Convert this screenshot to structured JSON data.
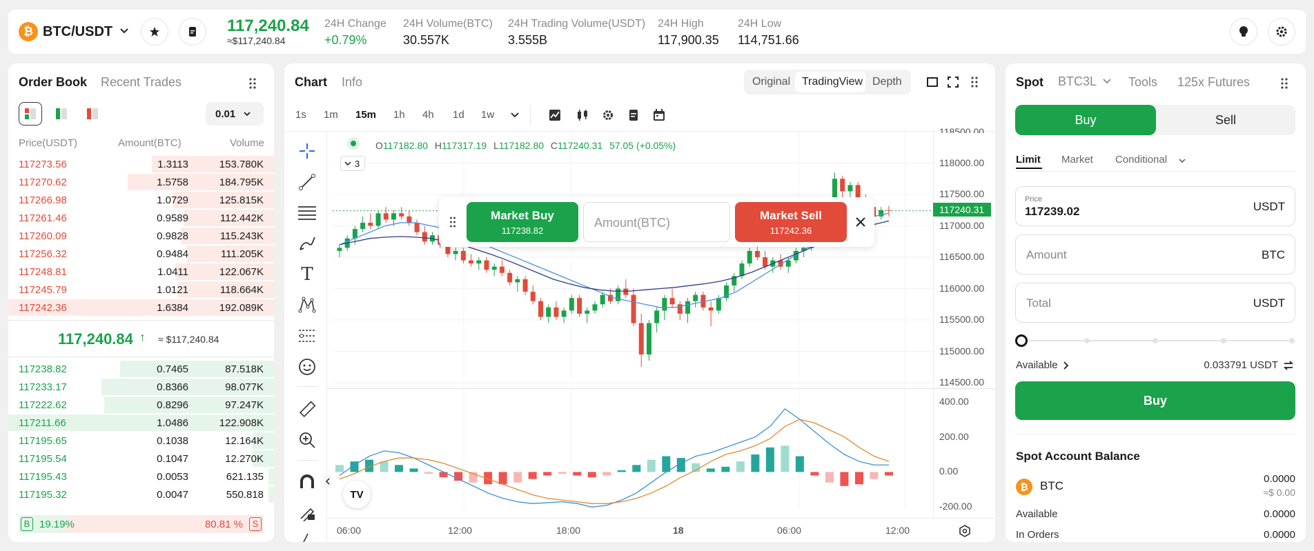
{
  "header": {
    "pair": "BTC/USDT",
    "price": "117,240.84",
    "price_usd": "≈$117,240.84",
    "stats": [
      {
        "label": "24H Change",
        "value": "+0.79%"
      },
      {
        "label": "24H Volume(BTC)",
        "value": "30.557K"
      },
      {
        "label": "24H Trading Volume(USDT)",
        "value": "3.555B"
      },
      {
        "label": "24H High",
        "value": "117,900.35"
      },
      {
        "label": "24H Low",
        "value": "114,751.66"
      }
    ],
    "coin_glyph": "₿"
  },
  "orderbook": {
    "tabs": [
      "Order Book",
      "Recent Trades"
    ],
    "precision": "0.01",
    "columns": [
      "Price(USDT)",
      "Amount(BTC)",
      "Volume"
    ],
    "asks": [
      {
        "price": "117273.56",
        "amount": "1.3113",
        "volume": "153.780K",
        "depth": 0.46
      },
      {
        "price": "117270.62",
        "amount": "1.5758",
        "volume": "184.795K",
        "depth": 0.55
      },
      {
        "price": "117266.98",
        "amount": "1.0729",
        "volume": "125.815K",
        "depth": 0.38
      },
      {
        "price": "117261.46",
        "amount": "0.9589",
        "volume": "112.442K",
        "depth": 0.34
      },
      {
        "price": "117260.09",
        "amount": "0.9828",
        "volume": "115.243K",
        "depth": 0.35
      },
      {
        "price": "117256.32",
        "amount": "0.9484",
        "volume": "111.205K",
        "depth": 0.33
      },
      {
        "price": "117248.81",
        "amount": "1.0411",
        "volume": "122.067K",
        "depth": 0.37
      },
      {
        "price": "117245.79",
        "amount": "1.0121",
        "volume": "118.664K",
        "depth": 0.36
      },
      {
        "price": "117242.36",
        "amount": "1.6384",
        "volume": "192.089K",
        "depth": 1.0
      }
    ],
    "mid_price": "117,240.84",
    "mid_arrow": "↑",
    "mid_usd": "≈ $117,240.84",
    "bids": [
      {
        "price": "117238.82",
        "amount": "0.7465",
        "volume": "87.518K",
        "depth": 0.58
      },
      {
        "price": "117233.17",
        "amount": "0.8366",
        "volume": "98.077K",
        "depth": 0.65
      },
      {
        "price": "117222.62",
        "amount": "0.8296",
        "volume": "97.247K",
        "depth": 0.64
      },
      {
        "price": "117211.66",
        "amount": "1.0486",
        "volume": "122.908K",
        "depth": 1.0
      },
      {
        "price": "117195.65",
        "amount": "0.1038",
        "volume": "12.164K",
        "depth": 0.08
      },
      {
        "price": "117195.54",
        "amount": "0.1047",
        "volume": "12.270K",
        "depth": 0.08
      },
      {
        "price": "117195.43",
        "amount": "0.0053",
        "volume": "621.135",
        "depth": 0.02
      },
      {
        "price": "117195.32",
        "amount": "0.0047",
        "volume": "550.818",
        "depth": 0.02
      }
    ],
    "buy_ratio": {
      "tag": "B",
      "value": "19.19%",
      "fraction": 0.1919
    },
    "sell_ratio": {
      "tag": "S",
      "value": "80.81 %",
      "fraction": 0.8081
    }
  },
  "chart": {
    "tabs": [
      "Chart",
      "Info"
    ],
    "modes": [
      "Original",
      "TradingView",
      "Depth"
    ],
    "active_mode": "TradingView",
    "timeframes": [
      "1s",
      "1m",
      "15m",
      "1h",
      "4h",
      "1d",
      "1w"
    ],
    "active_timeframe": "15m",
    "ohlc": {
      "o_label": "O",
      "o": "117182.80",
      "h_label": "H",
      "h": "117317.19",
      "l_label": "L",
      "l": "117182.80",
      "c_label": "C",
      "c": "117240.31",
      "chg": "57.05 (+0.05%)"
    },
    "indicator_count": "3",
    "price_axis": [
      "118500.00",
      "118000.00",
      "117500.00",
      "117000.00",
      "116500.00",
      "116000.00",
      "115500.00",
      "115000.00",
      "114500.00"
    ],
    "current_price_tag": "117240.31",
    "macd_axis": [
      "400.00",
      "200.00",
      "0.00",
      "-200.00"
    ],
    "time_axis": [
      "06:00",
      "12:00",
      "18:00",
      "18",
      "06:00",
      "12:00"
    ],
    "tv_logo": "TV",
    "quick_trade": {
      "buy_label": "Market Buy",
      "buy_price": "117238.82",
      "amount_placeholder": "Amount(BTC)",
      "sell_label": "Market Sell",
      "sell_price": "117242.36"
    }
  },
  "chart_data": {
    "type": "candlestick",
    "ylim": [
      114500,
      118500
    ],
    "macd_ylim": [
      -250,
      450
    ],
    "x_ticks": [
      "06:00",
      "12:00",
      "18:00",
      "18",
      "06:00",
      "12:00"
    ],
    "candles": [
      [
        116600,
        116700,
        116500,
        116650
      ],
      [
        116650,
        116850,
        116600,
        116800
      ],
      [
        116800,
        117000,
        116700,
        116950
      ],
      [
        116950,
        117150,
        116900,
        117050
      ],
      [
        117050,
        117200,
        116950,
        117000
      ],
      [
        117000,
        117250,
        116950,
        117200
      ],
      [
        117200,
        117300,
        117050,
        117100
      ],
      [
        117100,
        117250,
        117000,
        117200
      ],
      [
        117200,
        117300,
        117100,
        117150
      ],
      [
        117150,
        117250,
        117000,
        117050
      ],
      [
        117050,
        117100,
        116850,
        116900
      ],
      [
        116900,
        117000,
        116700,
        116750
      ],
      [
        116750,
        116900,
        116700,
        116850
      ],
      [
        116850,
        116900,
        116650,
        116700
      ],
      [
        116700,
        116750,
        116500,
        116550
      ],
      [
        116550,
        116650,
        116450,
        116600
      ],
      [
        116600,
        116650,
        116400,
        116450
      ],
      [
        116450,
        116550,
        116350,
        116400
      ],
      [
        116400,
        116500,
        116300,
        116450
      ],
      [
        116450,
        116500,
        116250,
        116300
      ],
      [
        116300,
        116400,
        116200,
        116350
      ],
      [
        116350,
        116450,
        116200,
        116250
      ],
      [
        116250,
        116300,
        116050,
        116100
      ],
      [
        116100,
        116200,
        115950,
        116150
      ],
      [
        116150,
        116200,
        115900,
        115950
      ],
      [
        115950,
        116050,
        115750,
        115800
      ],
      [
        115800,
        115850,
        115500,
        115550
      ],
      [
        115550,
        115750,
        115450,
        115700
      ],
      [
        115700,
        115800,
        115500,
        115550
      ],
      [
        115550,
        115700,
        115450,
        115650
      ],
      [
        115650,
        115900,
        115600,
        115850
      ],
      [
        115850,
        115900,
        115550,
        115600
      ],
      [
        115600,
        115700,
        115450,
        115650
      ],
      [
        115650,
        115800,
        115600,
        115750
      ],
      [
        115750,
        115950,
        115700,
        115900
      ],
      [
        115900,
        116000,
        115750,
        115800
      ],
      [
        115800,
        116050,
        115750,
        116000
      ],
      [
        116000,
        116150,
        115850,
        115900
      ],
      [
        115900,
        116000,
        115400,
        115450
      ],
      [
        115450,
        115600,
        114750,
        114950
      ],
      [
        114950,
        115500,
        114850,
        115450
      ],
      [
        115450,
        115700,
        115300,
        115650
      ],
      [
        115650,
        115900,
        115500,
        115850
      ],
      [
        115850,
        116000,
        115700,
        115750
      ],
      [
        115750,
        115800,
        115500,
        115600
      ],
      [
        115600,
        115850,
        115450,
        115800
      ],
      [
        115800,
        115950,
        115700,
        115900
      ],
      [
        115900,
        115950,
        115650,
        115700
      ],
      [
        115700,
        115800,
        115400,
        115650
      ],
      [
        115650,
        115900,
        115600,
        115850
      ],
      [
        115850,
        116100,
        115800,
        116050
      ],
      [
        116050,
        116250,
        115950,
        116200
      ],
      [
        116200,
        116450,
        116150,
        116400
      ],
      [
        116400,
        116650,
        116350,
        116600
      ],
      [
        116600,
        116750,
        116450,
        116500
      ],
      [
        116500,
        116600,
        116300,
        116350
      ],
      [
        116350,
        116500,
        116250,
        116450
      ],
      [
        116450,
        116550,
        116300,
        116350
      ],
      [
        116350,
        116500,
        116250,
        116450
      ],
      [
        116450,
        116650,
        116400,
        116600
      ],
      [
        116600,
        116700,
        116500,
        116650
      ],
      [
        116650,
        116850,
        116600,
        116800
      ],
      [
        116800,
        117050,
        116750,
        117000
      ],
      [
        117000,
        117300,
        116950,
        117250
      ],
      [
        117250,
        117850,
        117200,
        117750
      ],
      [
        117750,
        117800,
        117450,
        117550
      ],
      [
        117550,
        117700,
        117450,
        117650
      ],
      [
        117650,
        117700,
        117350,
        117400
      ],
      [
        117400,
        117500,
        117200,
        117300
      ],
      [
        117300,
        117350,
        117100,
        117150
      ],
      [
        117150,
        117300,
        117100,
        117250
      ],
      [
        117250,
        117320,
        117150,
        117240
      ]
    ],
    "ma_fast": [
      116700,
      116800,
      116900,
      117000,
      117050,
      117050,
      117000,
      116950,
      116850,
      116750,
      116650,
      116550,
      116450,
      116350,
      116250,
      116150,
      116050,
      115950,
      115850,
      115800,
      115750,
      115700,
      115700,
      115750,
      115800,
      115850,
      115950,
      116100,
      116250,
      116400,
      116550,
      116700,
      116850,
      116950,
      117050,
      117150,
      117200
    ],
    "ma_slow": [
      116700,
      116750,
      116800,
      116820,
      116830,
      116820,
      116800,
      116750,
      116700,
      116620,
      116540,
      116450,
      116350,
      116250,
      116150,
      116080,
      116020,
      115980,
      115960,
      115960,
      115980,
      116000,
      116020,
      116050,
      116080,
      116120,
      116180,
      116260,
      116360,
      116460,
      116560,
      116660,
      116760,
      116860,
      116940,
      117020,
      117080
    ],
    "macd": [
      -20,
      40,
      90,
      120,
      110,
      80,
      40,
      0,
      -40,
      -80,
      -120,
      -150,
      -170,
      -180,
      -175,
      -170,
      -180,
      -200,
      -190,
      -160,
      -120,
      -60,
      0,
      50,
      90,
      110,
      140,
      170,
      200,
      260,
      360,
      300,
      230,
      160,
      100,
      60,
      40,
      40
    ],
    "signal": [
      -40,
      -10,
      30,
      60,
      80,
      80,
      70,
      50,
      20,
      -10,
      -40,
      -70,
      -100,
      -130,
      -150,
      -160,
      -170,
      -180,
      -180,
      -170,
      -150,
      -120,
      -80,
      -30,
      10,
      60,
      100,
      120,
      150,
      190,
      260,
      300,
      280,
      240,
      200,
      140,
      90,
      60
    ],
    "histogram": [
      40,
      60,
      70,
      60,
      40,
      20,
      -10,
      -30,
      -50,
      -60,
      -70,
      -70,
      -60,
      -40,
      -20,
      -10,
      -20,
      -30,
      -20,
      10,
      40,
      70,
      90,
      80,
      50,
      20,
      30,
      60,
      100,
      140,
      150,
      90,
      -20,
      -60,
      -80,
      -70,
      -40,
      -20
    ]
  },
  "trade": {
    "tabs": [
      "Spot",
      "BTC3L",
      "Tools",
      "125x Futures"
    ],
    "buy": "Buy",
    "sell": "Sell",
    "order_types": [
      "Limit",
      "Market",
      "Conditional"
    ],
    "price_label": "Price",
    "price_value": "117239.02",
    "price_unit": "USDT",
    "amount_placeholder": "Amount",
    "amount_unit": "BTC",
    "total_placeholder": "Total",
    "total_unit": "USDT",
    "available_label": "Available",
    "available_value": "0.033791 USDT",
    "submit": "Buy",
    "balance_title": "Spot Account Balance",
    "coin": "BTC",
    "coin_amount": "0.0000",
    "coin_usd": "≈$ 0.00",
    "available_row_label": "Available",
    "available_row_value": "0.0000",
    "in_orders_label": "In Orders",
    "in_orders_value": "0.0000"
  },
  "colors": {
    "up": "#1aa34a",
    "down": "#e24a3a",
    "macd_up": "#26a69a",
    "macd_down": "#ef5350"
  }
}
